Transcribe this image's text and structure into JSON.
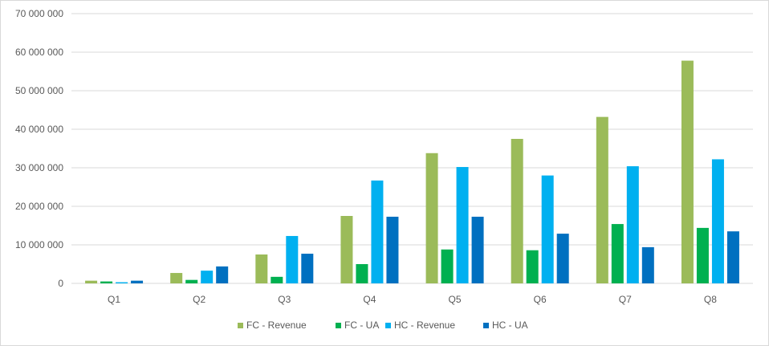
{
  "chart_data": {
    "type": "bar",
    "title": "",
    "xlabel": "",
    "ylabel": "",
    "ylim": [
      0,
      70000000
    ],
    "yticks": [
      0,
      10000000,
      20000000,
      30000000,
      40000000,
      50000000,
      60000000,
      70000000
    ],
    "ytick_labels": [
      "0",
      "10 000 000",
      "20 000 000",
      "30 000 000",
      "40 000 000",
      "50 000 000",
      "60 000 000",
      "70 000 000"
    ],
    "grid": true,
    "legend_position": "bottom",
    "categories": [
      "Q1",
      "Q2",
      "Q3",
      "Q4",
      "Q5",
      "Q6",
      "Q7",
      "Q8"
    ],
    "series": [
      {
        "name": "FC - Revenue",
        "color": "#9BBB59",
        "values": [
          700000,
          2700000,
          7500000,
          17500000,
          33800000,
          37500000,
          43200000,
          57800000
        ]
      },
      {
        "name": "FC - UA",
        "color": "#00B050",
        "values": [
          500000,
          900000,
          1700000,
          5000000,
          8800000,
          8600000,
          15400000,
          14400000
        ]
      },
      {
        "name": "HC - Revenue",
        "color": "#00B0F0",
        "values": [
          300000,
          3300000,
          12300000,
          26700000,
          30200000,
          28000000,
          30400000,
          32200000
        ]
      },
      {
        "name": "HC - UA",
        "color": "#0070C0",
        "values": [
          700000,
          4400000,
          7700000,
          17300000,
          17300000,
          12900000,
          9400000,
          13500000
        ]
      }
    ]
  }
}
